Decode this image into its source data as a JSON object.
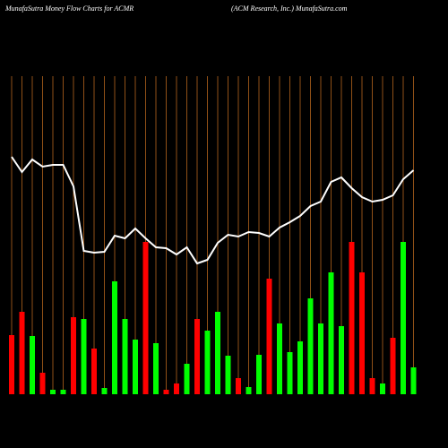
{
  "chart_data": {
    "type": "bar",
    "title": "MunafaSutra  Money Flow  Charts for ACMR",
    "subtitle": "(ACM Research,  Inc.) MunafaSutra.com",
    "categories": [
      null,
      null,
      null,
      null,
      null,
      null,
      null,
      null,
      null,
      null,
      null,
      null,
      null,
      null,
      null,
      null,
      null,
      null,
      null,
      null,
      null,
      null,
      null,
      null,
      null,
      null,
      null,
      null,
      null,
      null,
      null,
      null,
      null,
      null,
      null,
      null,
      null,
      null,
      null,
      null
    ],
    "ylim": [
      0,
      355
    ],
    "grid": true,
    "grid_color": "#b5651d",
    "series": [
      {
        "type": "bar",
        "values": [
          66,
          92,
          65,
          24,
          5,
          5,
          86,
          84,
          51,
          7,
          126,
          84,
          61,
          170,
          57,
          5,
          12,
          34,
          84,
          71,
          92,
          43,
          18,
          8,
          44,
          129,
          79,
          47,
          59,
          107,
          79,
          136,
          76,
          170,
          136,
          18,
          12,
          63,
          170,
          30
        ],
        "colors": [
          "#ff0000",
          "#ff0000",
          "#00ff00",
          "#ff0000",
          "#00ff00",
          "#00ff00",
          "#ff0000",
          "#00ff00",
          "#ff0000",
          "#00ff00",
          "#00ff00",
          "#00ff00",
          "#00ff00",
          "#ff0000",
          "#00ff00",
          "#ff0000",
          "#ff0000",
          "#00ff00",
          "#ff0000",
          "#00ff00",
          "#00ff00",
          "#00ff00",
          "#ff0000",
          "#00ff00",
          "#00ff00",
          "#ff0000",
          "#00ff00",
          "#00ff00",
          "#00ff00",
          "#00ff00",
          "#00ff00",
          "#00ff00",
          "#00ff00",
          "#ff0000",
          "#ff0000",
          "#ff0000",
          "#00ff00",
          "#ff0000",
          "#00ff00",
          "#00ff00"
        ]
      },
      {
        "type": "line",
        "color": "#ffffff",
        "values": [
          265,
          248,
          262,
          254,
          256,
          256,
          232,
          160,
          158,
          159,
          177,
          174,
          185,
          174,
          164,
          163,
          156,
          164,
          146,
          150,
          169,
          178,
          176,
          181,
          180,
          176,
          186,
          192,
          199,
          210,
          215,
          237,
          242,
          230,
          220,
          215,
          217,
          222,
          240,
          250
        ]
      }
    ]
  }
}
